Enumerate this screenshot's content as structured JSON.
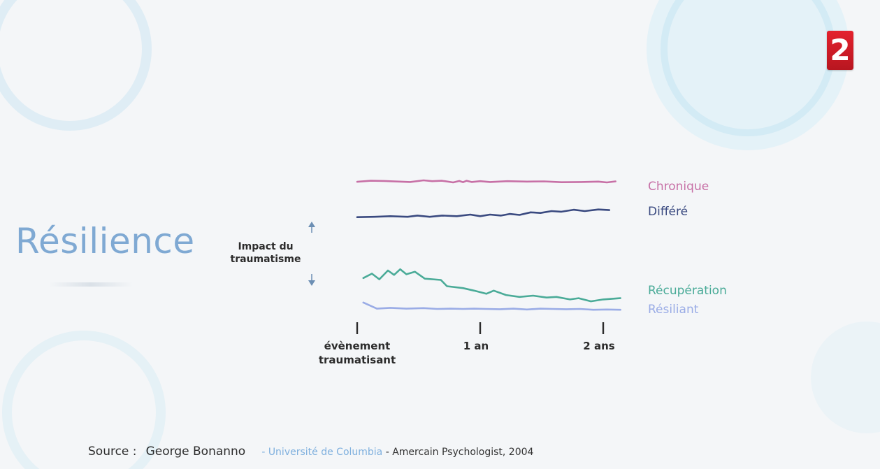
{
  "channel_logo": {
    "text": "2",
    "color": "#d8212c"
  },
  "title": "Résilience",
  "chart_data": {
    "type": "line",
    "ylabel": [
      "Impact du",
      "traumatisme"
    ],
    "x_ticks": [
      {
        "x": 0,
        "label": [
          "évènement",
          "traumatisant"
        ]
      },
      {
        "x": 1,
        "label": [
          "1 an"
        ]
      },
      {
        "x": 2,
        "label": [
          "2 ans"
        ]
      }
    ],
    "xlim": [
      0,
      2.25
    ],
    "ylim": [
      0,
      1
    ],
    "series": [
      {
        "name": "Chronique",
        "color": "#c770a6",
        "x": [
          0,
          0.11,
          0.22,
          0.43,
          0.54,
          0.61,
          0.69,
          0.78,
          0.83,
          0.86,
          0.89,
          0.93,
          1.0,
          1.08,
          1.22,
          1.38,
          1.52,
          1.66,
          1.82,
          1.96,
          2.03,
          2.1
        ],
        "y": [
          0.93,
          0.98,
          0.97,
          0.92,
          1.0,
          0.96,
          0.98,
          0.9,
          0.97,
          0.91,
          0.98,
          0.92,
          0.96,
          0.92,
          0.96,
          0.94,
          0.95,
          0.91,
          0.92,
          0.94,
          0.9,
          0.95
        ]
      },
      {
        "name": "Différé",
        "color": "#3a4a80",
        "x": [
          0,
          0.14,
          0.27,
          0.41,
          0.49,
          0.59,
          0.69,
          0.81,
          0.92,
          1.0,
          1.08,
          1.17,
          1.24,
          1.32,
          1.41,
          1.49,
          1.58,
          1.66,
          1.76,
          1.85,
          1.96,
          2.05
        ],
        "y": [
          0.55,
          0.56,
          0.58,
          0.56,
          0.6,
          0.56,
          0.6,
          0.58,
          0.63,
          0.58,
          0.63,
          0.6,
          0.65,
          0.62,
          0.7,
          0.68,
          0.74,
          0.72,
          0.78,
          0.74,
          0.79,
          0.77
        ]
      },
      {
        "name": "Récupération",
        "color": "#4aab98",
        "x": [
          0.05,
          0.12,
          0.18,
          0.25,
          0.3,
          0.35,
          0.4,
          0.47,
          0.55,
          0.68,
          0.73,
          0.86,
          0.95,
          1.05,
          1.11,
          1.21,
          1.32,
          1.43,
          1.54,
          1.62,
          1.73,
          1.8,
          1.9,
          2.0,
          2.14
        ],
        "y": [
          0.38,
          0.45,
          0.36,
          0.5,
          0.43,
          0.52,
          0.44,
          0.48,
          0.37,
          0.35,
          0.25,
          0.22,
          0.18,
          0.13,
          0.18,
          0.11,
          0.08,
          0.1,
          0.07,
          0.08,
          0.04,
          0.06,
          0.01,
          0.04,
          0.06
        ]
      },
      {
        "name": "Résiliant",
        "color": "#9aace6",
        "x": [
          0.05,
          0.16,
          0.27,
          0.4,
          0.54,
          0.65,
          0.76,
          0.86,
          0.95,
          1.05,
          1.16,
          1.27,
          1.38,
          1.49,
          1.59,
          1.7,
          1.81,
          1.92,
          2.03,
          2.14
        ],
        "y": [
          0.23,
          0.01,
          0.04,
          0.01,
          0.03,
          0.0,
          0.01,
          0.0,
          0.01,
          0.0,
          -0.01,
          0.01,
          -0.02,
          0.01,
          0.0,
          -0.01,
          0.0,
          -0.03,
          -0.02,
          -0.03
        ]
      }
    ]
  },
  "source": {
    "label": "Source :",
    "author": "George Bonanno",
    "university": "- Université de Columbia",
    "publication": " - Amercain Psychologist, 2004"
  }
}
